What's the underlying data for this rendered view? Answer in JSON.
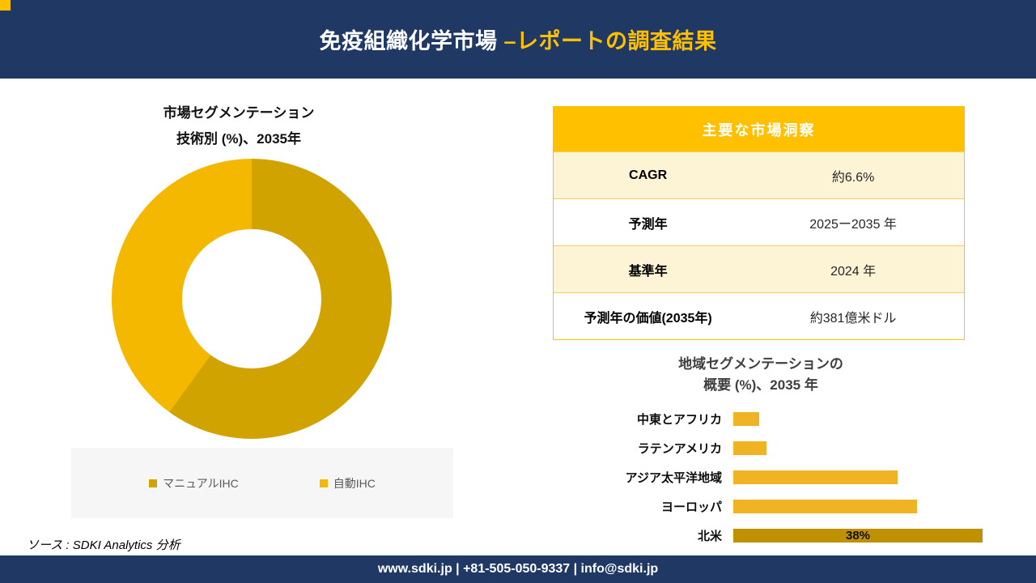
{
  "colors": {
    "navy": "#1f3864",
    "gold": "#ffc000",
    "cream": "#fdf3d5",
    "bar_gold": "#f0b323",
    "bar_dark": "#bf9000"
  },
  "header": {
    "title_white": "免疫組織化学市場 ",
    "title_gold": "–レポートの調査結果"
  },
  "donut_section": {
    "title_line1": "市場セグメンテーション",
    "title_line2": "技術別 (%)、2035年",
    "legend": [
      {
        "label": "マニュアルIHC"
      },
      {
        "label": "自動IHC"
      }
    ]
  },
  "insights_table": {
    "header": "主要な市場洞察",
    "rows": [
      {
        "label": "CAGR",
        "value": "約6.6%"
      },
      {
        "label": "予測年",
        "value": "2025ー2035 年"
      },
      {
        "label": "基準年",
        "value": "2024 年"
      },
      {
        "label": "予測年の価値(2035年)",
        "value": "約381億米ドル"
      }
    ]
  },
  "bar_section": {
    "title_line1": "地域セグメンテーションの",
    "title_line2": "概要 (%)、2035 年"
  },
  "source_text": "ソース : SDKI Analytics 分析",
  "footer_text": "www.sdki.jp | +81-505-050-9337 | info@sdki.jp",
  "chart_data": [
    {
      "type": "pie",
      "subtype": "donut",
      "title": "市場セグメンテーション 技術別 (%)、2035年",
      "labels": [
        "マニュアルIHC",
        "自動IHC"
      ],
      "values": [
        60,
        40
      ],
      "colors": [
        "#d1a300",
        "#f4b800"
      ],
      "start_angle_deg": 0,
      "direction": "clockwise",
      "legend_position": "bottom"
    },
    {
      "type": "bar",
      "orientation": "horizontal",
      "title": "地域セグメンテーションの概要 (%)、2035 年",
      "categories": [
        "中東とアフリカ",
        "ラテンアメリカ",
        "アジア太平洋地域",
        "ヨーロッパ",
        "北米"
      ],
      "values": [
        4,
        5,
        25,
        28,
        38
      ],
      "value_labels": [
        "",
        "",
        "",
        "",
        "38%"
      ],
      "colors": [
        "#f0b323",
        "#f0b323",
        "#f0b323",
        "#f0b323",
        "#bf9000"
      ],
      "xlim": [
        0,
        38
      ],
      "unit": "%",
      "grid": false,
      "axis_lines": false
    }
  ]
}
